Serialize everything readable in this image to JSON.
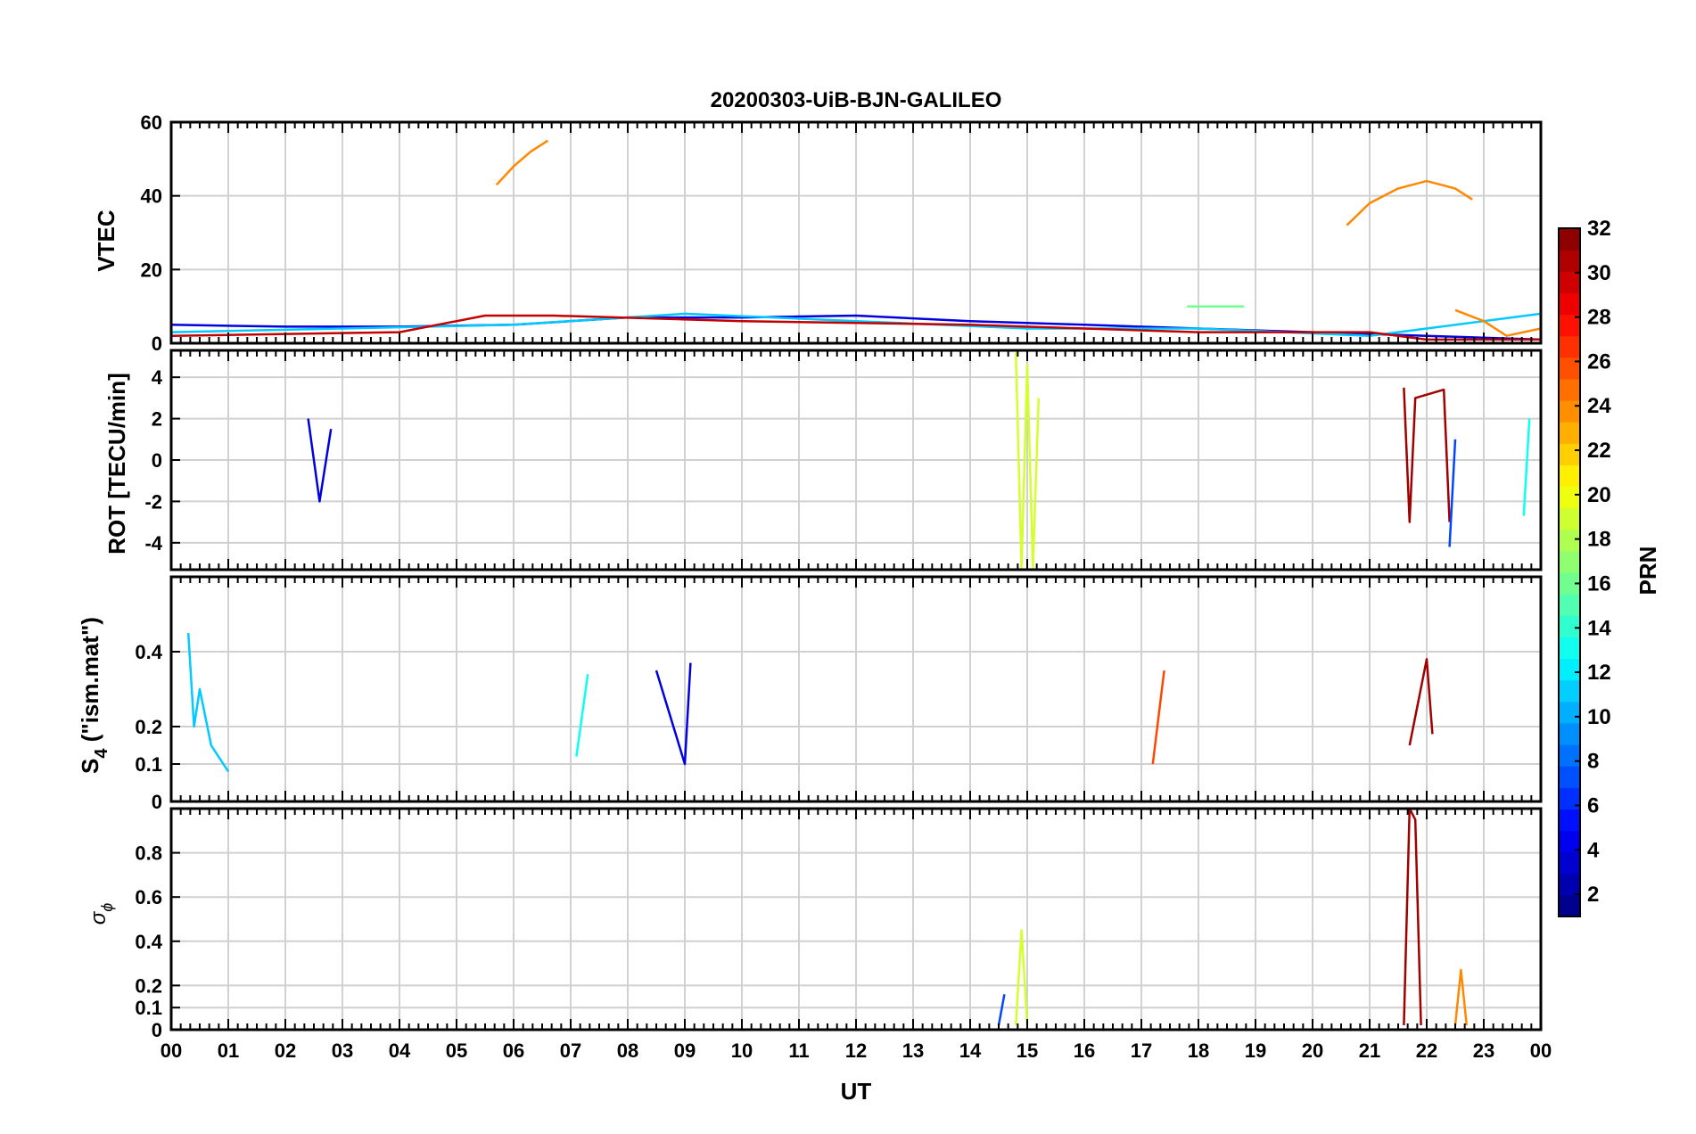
{
  "title": "20200303-UiB-BJN-GALILEO",
  "colorbar": {
    "label": "PRN",
    "min": 1,
    "max": 32,
    "ticks": [
      "2",
      "4",
      "6",
      "8",
      "10",
      "12",
      "14",
      "16",
      "18",
      "20",
      "22",
      "24",
      "26",
      "28",
      "30",
      "32"
    ],
    "colormap": "jet"
  },
  "x_axis": {
    "label": "UT",
    "ticks": [
      "00",
      "01",
      "02",
      "03",
      "04",
      "05",
      "06",
      "07",
      "08",
      "09",
      "10",
      "11",
      "12",
      "13",
      "14",
      "15",
      "16",
      "17",
      "18",
      "19",
      "20",
      "21",
      "22",
      "23",
      "00"
    ]
  },
  "panels": {
    "vtec": {
      "ylabel": "VTEC",
      "yticks": [
        "0",
        "20",
        "40",
        "60"
      ]
    },
    "rot": {
      "ylabel": "ROT [TECU/min]",
      "yticks": [
        "-4",
        "-2",
        "0",
        "2",
        "4"
      ]
    },
    "s4": {
      "ylabel_base": "S",
      "ylabel_sub": "4",
      "ylabel_rest": " (\"ism.mat\")",
      "yticks": [
        "0",
        "0.1",
        "0.2",
        "0.4"
      ]
    },
    "sigma": {
      "ylabel_base": "σ",
      "ylabel_sub": "ϕ",
      "yticks": [
        "0",
        "0.1",
        "0.2",
        "0.4",
        "0.6",
        "0.8"
      ]
    }
  },
  "chart_data": [
    {
      "type": "line",
      "panel": "VTEC",
      "xlabel": "UT",
      "ylabel": "VTEC",
      "xlim": [
        0,
        24
      ],
      "ylim": [
        0,
        60
      ],
      "grid": true,
      "series": [
        {
          "prn": 24,
          "x": [
            5.7,
            6.0,
            6.3,
            6.6
          ],
          "y": [
            43,
            48,
            52,
            55
          ]
        },
        {
          "prn": 24,
          "x": [
            20.6,
            21.0,
            21.5,
            22.0,
            22.5,
            22.8
          ],
          "y": [
            32,
            38,
            42,
            44,
            42,
            39
          ]
        },
        {
          "prn": 4,
          "x": [
            0,
            2,
            4,
            6,
            8,
            10,
            12,
            14,
            16,
            18,
            20,
            22,
            24
          ],
          "y": [
            5,
            4.5,
            4.5,
            5,
            7,
            7,
            7.5,
            6,
            5,
            4,
            3,
            2,
            1
          ]
        },
        {
          "prn": 11,
          "x": [
            0,
            3,
            6,
            9,
            12,
            15,
            18,
            21,
            24
          ],
          "y": [
            3,
            4,
            5,
            8,
            6,
            4,
            4,
            2,
            8
          ]
        },
        {
          "prn": 30,
          "x": [
            0,
            4,
            5.5,
            6.7,
            10,
            14,
            18,
            21,
            22,
            24
          ],
          "y": [
            2,
            3,
            7.5,
            7.5,
            6,
            5,
            3,
            3,
            1,
            1
          ]
        },
        {
          "prn": 16,
          "x": [
            17.8,
            18.2,
            18.8
          ],
          "y": [
            10,
            10,
            10
          ]
        },
        {
          "prn": 24,
          "x": [
            22.5,
            23.0,
            23.4,
            24
          ],
          "y": [
            9,
            6,
            2,
            4
          ]
        }
      ]
    },
    {
      "type": "line",
      "panel": "ROT",
      "xlabel": "UT",
      "ylabel": "ROT [TECU/min]",
      "xlim": [
        0,
        24
      ],
      "ylim": [
        -5.3,
        5.3
      ],
      "grid": true,
      "series": [
        {
          "prn": 4,
          "x": [
            2.4,
            2.6,
            2.8
          ],
          "y": [
            2,
            -2,
            1.5
          ]
        },
        {
          "prn": 19,
          "x": [
            14.8,
            14.9,
            15.0,
            15.1,
            15.2
          ],
          "y": [
            5.2,
            -5.2,
            4.6,
            -5.2,
            3
          ]
        },
        {
          "prn": 31,
          "x": [
            21.6,
            21.7,
            21.8,
            22.3,
            22.4
          ],
          "y": [
            3.5,
            -3,
            3,
            3.4,
            -3
          ]
        },
        {
          "prn": 7,
          "x": [
            22.4,
            22.5
          ],
          "y": [
            -4.2,
            1
          ]
        },
        {
          "prn": 13,
          "x": [
            23.7,
            23.8
          ],
          "y": [
            -2.7,
            2
          ]
        }
      ]
    },
    {
      "type": "line",
      "panel": "S4",
      "xlabel": "UT",
      "ylabel": "S4 (\"ism.mat\")",
      "xlim": [
        0,
        24
      ],
      "ylim": [
        0,
        0.6
      ],
      "grid": true,
      "series": [
        {
          "prn": 11,
          "x": [
            0.3,
            0.4,
            0.5,
            0.7,
            1.0
          ],
          "y": [
            0.45,
            0.2,
            0.3,
            0.15,
            0.08
          ]
        },
        {
          "prn": 4,
          "x": [
            8.5,
            9.0,
            9.1
          ],
          "y": [
            0.35,
            0.1,
            0.37
          ]
        },
        {
          "prn": 13,
          "x": [
            7.1,
            7.3
          ],
          "y": [
            0.12,
            0.34
          ]
        },
        {
          "prn": 31,
          "x": [
            21.7,
            22.0,
            22.1
          ],
          "y": [
            0.15,
            0.38,
            0.18
          ]
        },
        {
          "prn": 26,
          "x": [
            17.2,
            17.4
          ],
          "y": [
            0.1,
            0.35
          ]
        }
      ]
    },
    {
      "type": "line",
      "panel": "sigma_phi",
      "xlabel": "UT",
      "ylabel": "σϕ",
      "xlim": [
        0,
        24
      ],
      "ylim": [
        0,
        1
      ],
      "grid": true,
      "series": [
        {
          "prn": 31,
          "x": [
            21.6,
            21.7,
            21.8,
            21.9
          ],
          "y": [
            0.02,
            1.0,
            0.95,
            0.02
          ]
        },
        {
          "prn": 19,
          "x": [
            14.8,
            14.9,
            15.0
          ],
          "y": [
            0.02,
            0.45,
            0.02
          ]
        },
        {
          "prn": 24,
          "x": [
            22.5,
            22.6,
            22.7
          ],
          "y": [
            0.02,
            0.27,
            0.02
          ]
        },
        {
          "prn": 7,
          "x": [
            14.5,
            14.6
          ],
          "y": [
            0.02,
            0.16
          ]
        }
      ]
    }
  ]
}
